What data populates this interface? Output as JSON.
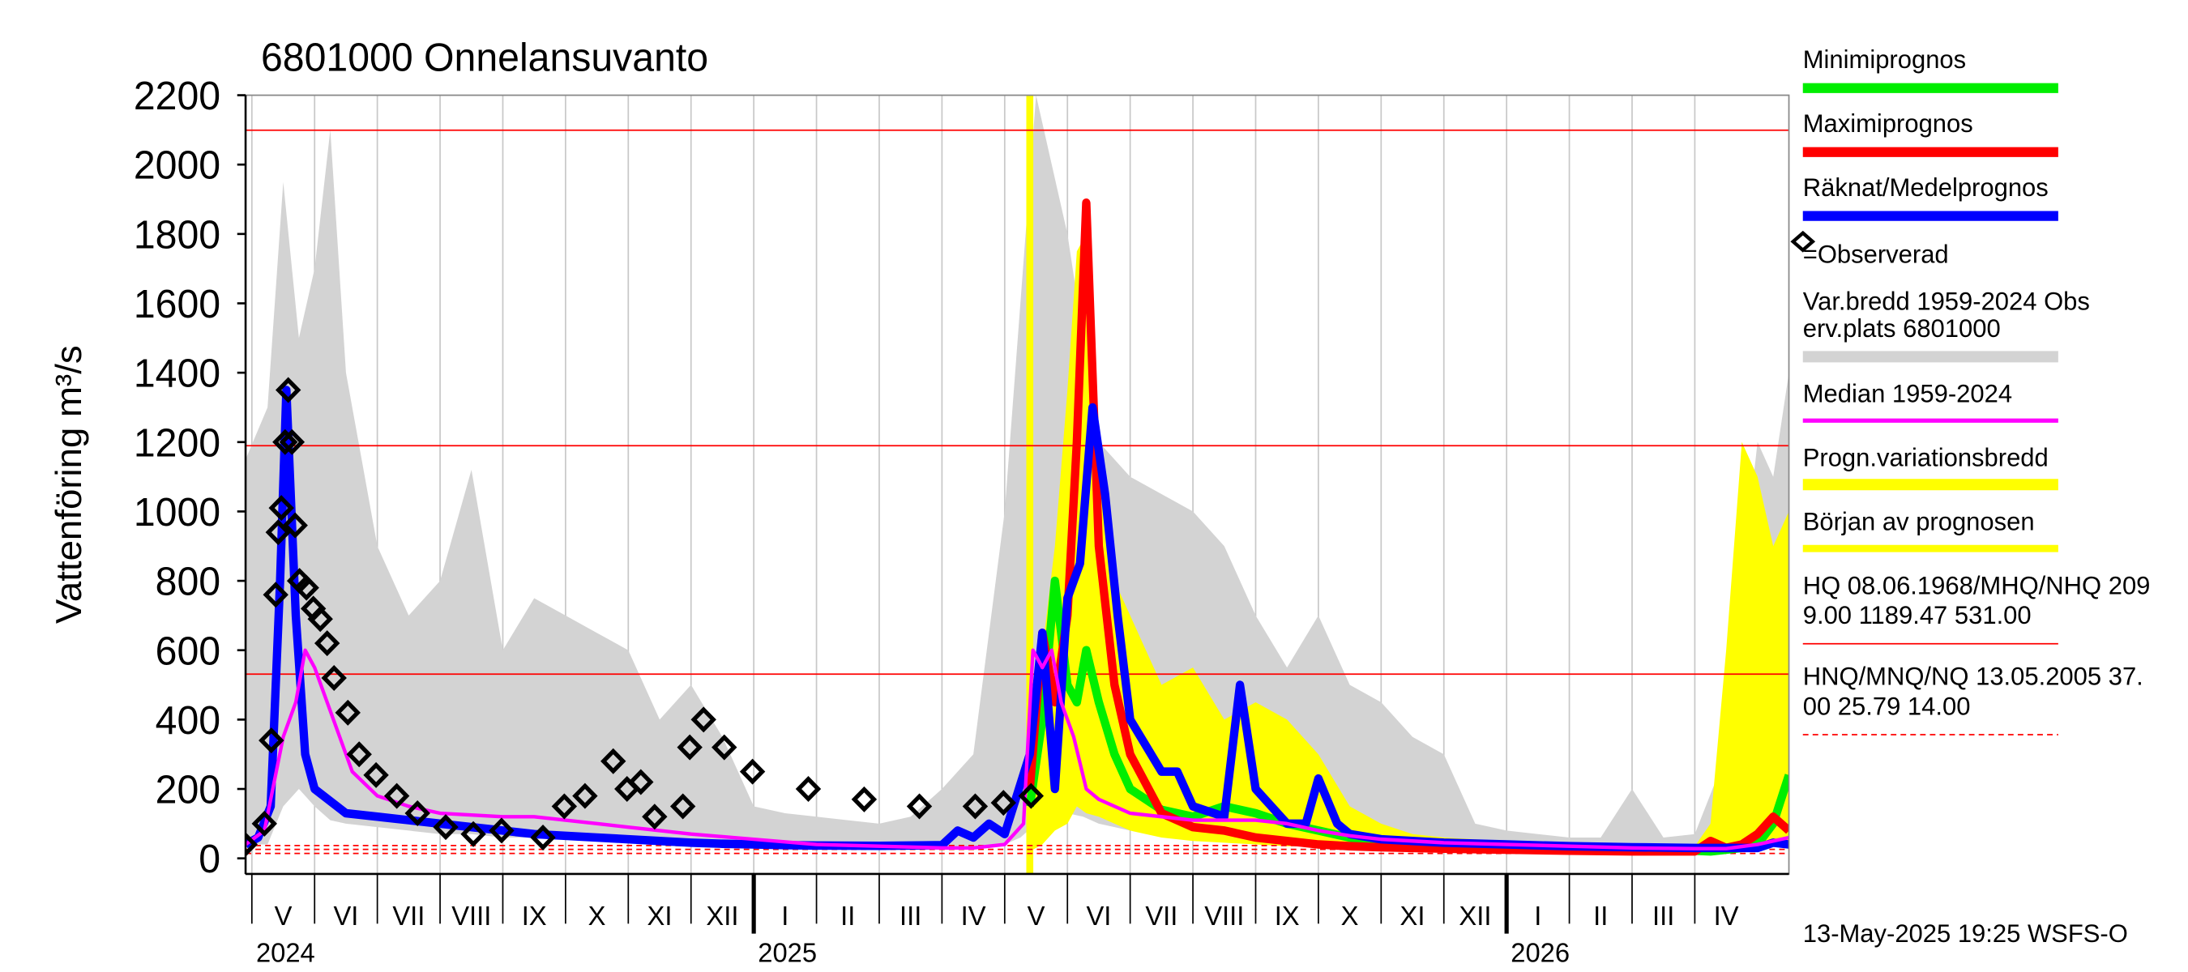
{
  "chart_data": {
    "type": "line",
    "title": "6801000 Onnelansuvanto",
    "ylabel": "Vattenföring m³/s",
    "footer": "13-May-2025 19:25 WSFS-O",
    "ylim": [
      -45,
      2200
    ],
    "yticks": [
      0,
      200,
      400,
      600,
      800,
      1000,
      1200,
      1400,
      1600,
      1800,
      2000,
      2200
    ],
    "xlim": [
      3.9,
      28.5
    ],
    "xgrid": true,
    "xticks": [
      {
        "value": 4,
        "label": "V"
      },
      {
        "value": 5,
        "label": "VI"
      },
      {
        "value": 6,
        "label": "VII"
      },
      {
        "value": 7,
        "label": "VIII"
      },
      {
        "value": 8,
        "label": "IX"
      },
      {
        "value": 9,
        "label": "X"
      },
      {
        "value": 10,
        "label": "XI"
      },
      {
        "value": 11,
        "label": "XII"
      },
      {
        "value": 12,
        "label": "I"
      },
      {
        "value": 13,
        "label": "II"
      },
      {
        "value": 14,
        "label": "III"
      },
      {
        "value": 15,
        "label": "IV"
      },
      {
        "value": 16,
        "label": "V"
      },
      {
        "value": 17,
        "label": "VI"
      },
      {
        "value": 18,
        "label": "VII"
      },
      {
        "value": 19,
        "label": "VIII"
      },
      {
        "value": 20,
        "label": "IX"
      },
      {
        "value": 21,
        "label": "X"
      },
      {
        "value": 22,
        "label": "XI"
      },
      {
        "value": 23,
        "label": "XII"
      },
      {
        "value": 24,
        "label": "I"
      },
      {
        "value": 25,
        "label": "II"
      },
      {
        "value": 26,
        "label": "III"
      },
      {
        "value": 27,
        "label": "IV"
      }
    ],
    "years": [
      {
        "value": 4,
        "label": "2024"
      },
      {
        "value": 12,
        "label": "2025"
      },
      {
        "value": 24,
        "label": "2026"
      }
    ],
    "bands": [
      {
        "name": "Var.bredd 1959-2024   Obs",
        "name_cont": "erv.plats 6801000",
        "color": "#d3d3d3",
        "x": [
          3.9,
          4.25,
          4.5,
          4.75,
          5,
          5.25,
          5.5,
          6,
          6.5,
          7,
          7.5,
          8,
          8.5,
          9,
          9.5,
          10,
          10.5,
          11,
          11.5,
          12,
          12.5,
          13,
          13.5,
          14,
          14.5,
          15,
          15.5,
          16,
          16.25,
          16.5,
          16.75,
          17,
          17.25,
          17.5,
          18,
          18.5,
          19,
          19.5,
          20,
          20.5,
          21,
          21.5,
          22,
          22.5,
          23,
          23.5,
          24,
          24.5,
          25,
          25.5,
          26,
          26.5,
          27,
          27.5,
          27.75,
          28,
          28.25,
          28.5
        ],
        "high": [
          1150,
          1300,
          1950,
          1500,
          1700,
          2100,
          1400,
          900,
          700,
          800,
          1120,
          600,
          750,
          700,
          650,
          600,
          400,
          500,
          350,
          150,
          130,
          120,
          110,
          100,
          120,
          200,
          300,
          1000,
          1600,
          2200,
          2000,
          1800,
          1500,
          1200,
          1100,
          1050,
          1000,
          900,
          700,
          550,
          700,
          500,
          450,
          350,
          300,
          100,
          80,
          70,
          60,
          60,
          200,
          60,
          70,
          300,
          800,
          1200,
          1100,
          1400
        ],
        "low": [
          40,
          40,
          150,
          200,
          150,
          110,
          100,
          90,
          80,
          70,
          70,
          60,
          60,
          60,
          55,
          50,
          50,
          45,
          40,
          35,
          30,
          30,
          30,
          30,
          30,
          30,
          30,
          40,
          60,
          100,
          150,
          130,
          120,
          100,
          80,
          70,
          60,
          60,
          55,
          50,
          45,
          40,
          35,
          30,
          30,
          25,
          25,
          25,
          20,
          20,
          20,
          20,
          20,
          20,
          30,
          40,
          50,
          60
        ]
      },
      {
        "name": "Progn.variationsbredd",
        "color": "#ffff00",
        "x": [
          16.4,
          16.6,
          16.8,
          17,
          17.15,
          17.3,
          17.5,
          17.75,
          18,
          18.5,
          19,
          19.5,
          20,
          20.5,
          21,
          21.5,
          22,
          22.5,
          23,
          24,
          25,
          26,
          27,
          27.25,
          27.5,
          27.75,
          28,
          28.25,
          28.5
        ],
        "high": [
          200,
          600,
          900,
          1350,
          1750,
          1800,
          1250,
          800,
          700,
          500,
          550,
          400,
          450,
          400,
          300,
          150,
          100,
          70,
          60,
          50,
          40,
          35,
          35,
          100,
          600,
          1200,
          1100,
          900,
          1000
        ],
        "low": [
          20,
          40,
          80,
          100,
          150,
          130,
          120,
          100,
          80,
          60,
          50,
          45,
          40,
          35,
          35,
          30,
          30,
          28,
          26,
          25,
          22,
          20,
          20,
          20,
          30,
          35,
          40,
          45,
          50
        ]
      }
    ],
    "forecast_start": {
      "name": "Början av prognosen",
      "color": "#ffff00",
      "x": 16.4
    },
    "series": [
      {
        "name": "Minimiprognos",
        "color": "#00ee00",
        "x": [
          16.4,
          16.6,
          16.8,
          17,
          17.15,
          17.3,
          17.5,
          17.75,
          18,
          18.5,
          19,
          19.5,
          20,
          20.5,
          21,
          21.5,
          22,
          22.5,
          23,
          24,
          25,
          26,
          27,
          27.25,
          27.5,
          27.75,
          28,
          28.25,
          28.5
        ],
        "values": [
          150,
          400,
          800,
          500,
          450,
          600,
          450,
          300,
          200,
          140,
          120,
          150,
          130,
          100,
          80,
          60,
          50,
          45,
          40,
          35,
          30,
          25,
          22,
          20,
          25,
          30,
          40,
          100,
          240
        ]
      },
      {
        "name": "Maximiprognos",
        "color": "#ff0000",
        "x": [
          16.4,
          16.6,
          16.8,
          17,
          17.15,
          17.3,
          17.5,
          17.75,
          18,
          18.5,
          19,
          19.5,
          20,
          20.5,
          21,
          21.5,
          22,
          22.5,
          23,
          24,
          25,
          26,
          27,
          27.25,
          27.5,
          27.75,
          28,
          28.25,
          28.5
        ],
        "values": [
          200,
          650,
          450,
          700,
          1200,
          1890,
          900,
          500,
          300,
          130,
          90,
          80,
          60,
          50,
          40,
          35,
          32,
          30,
          28,
          25,
          22,
          20,
          20,
          50,
          30,
          40,
          70,
          120,
          80
        ]
      },
      {
        "name": "Räknat/Medelprognos",
        "color": "#0000ff",
        "x": [
          3.9,
          4.1,
          4.3,
          4.45,
          4.55,
          4.7,
          4.85,
          5,
          5.5,
          6,
          6.5,
          7,
          7.5,
          8,
          8.5,
          9,
          9.5,
          10,
          10.5,
          11,
          11.5,
          12,
          12.5,
          13,
          14,
          15,
          15.25,
          15.5,
          15.75,
          16,
          16.4,
          16.6,
          16.8,
          17,
          17.2,
          17.4,
          17.6,
          17.8,
          18,
          18.5,
          18.75,
          19,
          19.5,
          19.75,
          20,
          20.5,
          20.8,
          21,
          21.3,
          21.5,
          22,
          22.5,
          23,
          24,
          25,
          26,
          27,
          27.5,
          28,
          28.25,
          28.5
        ],
        "values": [
          40,
          60,
          150,
          800,
          1350,
          700,
          300,
          200,
          130,
          120,
          110,
          100,
          90,
          80,
          70,
          65,
          60,
          55,
          50,
          45,
          42,
          40,
          38,
          37,
          36,
          38,
          80,
          60,
          100,
          70,
          300,
          650,
          200,
          750,
          850,
          1300,
          1050,
          700,
          400,
          250,
          250,
          150,
          120,
          500,
          200,
          100,
          100,
          230,
          100,
          70,
          55,
          50,
          45,
          40,
          35,
          32,
          30,
          30,
          30,
          45,
          40
        ]
      },
      {
        "name": "Median 1959-2024",
        "color": "#ff00ff",
        "x": [
          3.9,
          4.2,
          4.5,
          4.7,
          4.85,
          5,
          5.3,
          5.6,
          6,
          6.5,
          7,
          8,
          8.5,
          9,
          9.5,
          10,
          10.5,
          11,
          12,
          13,
          14,
          15,
          15.5,
          16,
          16.3,
          16.45,
          16.6,
          16.75,
          16.9,
          17.1,
          17.3,
          17.5,
          18,
          19,
          19.5,
          20,
          20.5,
          21,
          21.5,
          22,
          23,
          24,
          25,
          26,
          27,
          27.5,
          28,
          28.5
        ],
        "values": [
          40,
          80,
          350,
          450,
          600,
          550,
          400,
          250,
          180,
          150,
          130,
          120,
          120,
          110,
          100,
          90,
          80,
          70,
          55,
          40,
          35,
          30,
          30,
          40,
          100,
          600,
          550,
          600,
          450,
          350,
          200,
          170,
          130,
          110,
          110,
          110,
          100,
          80,
          65,
          55,
          45,
          40,
          35,
          30,
          28,
          28,
          40,
          60
        ]
      }
    ],
    "observed": {
      "name": "=Observerad",
      "x": [
        3.89,
        4.2,
        4.31,
        4.38,
        4.42,
        4.47,
        4.53,
        4.58,
        4.64,
        4.69,
        4.76,
        4.87,
        4.98,
        5.09,
        5.2,
        5.31,
        5.53,
        5.71,
        5.98,
        6.31,
        6.64,
        7.09,
        7.53,
        7.98,
        8.64,
        8.98,
        9.31,
        9.76,
        9.98,
        10.2,
        10.42,
        10.87,
        10.98,
        11.2,
        11.53,
        11.98,
        12.87,
        13.76,
        14.64,
        15.53,
        15.98,
        16.42
      ],
      "values": [
        40,
        100,
        340,
        760,
        940,
        1010,
        1200,
        1350,
        1200,
        960,
        800,
        780,
        720,
        690,
        620,
        520,
        420,
        300,
        240,
        180,
        130,
        90,
        70,
        80,
        60,
        150,
        180,
        280,
        200,
        220,
        120,
        150,
        320,
        400,
        320,
        250,
        200,
        170,
        150,
        150,
        160,
        180
      ]
    },
    "reference_lines": [
      {
        "label_lines": [
          "HQ 08.06.1968/MHQ/NHQ 209",
          "9.00 1189.47 531.00"
        ],
        "values": [
          2099,
          1189.47,
          531
        ],
        "color": "#ff0000",
        "style": "solid"
      },
      {
        "label_lines": [
          "HNQ/MNQ/NQ 13.05.2005 37.",
          "00 25.79 14.00"
        ],
        "values": [
          37,
          25.79,
          14
        ],
        "color": "#ff0000",
        "style": "dashed"
      }
    ]
  }
}
